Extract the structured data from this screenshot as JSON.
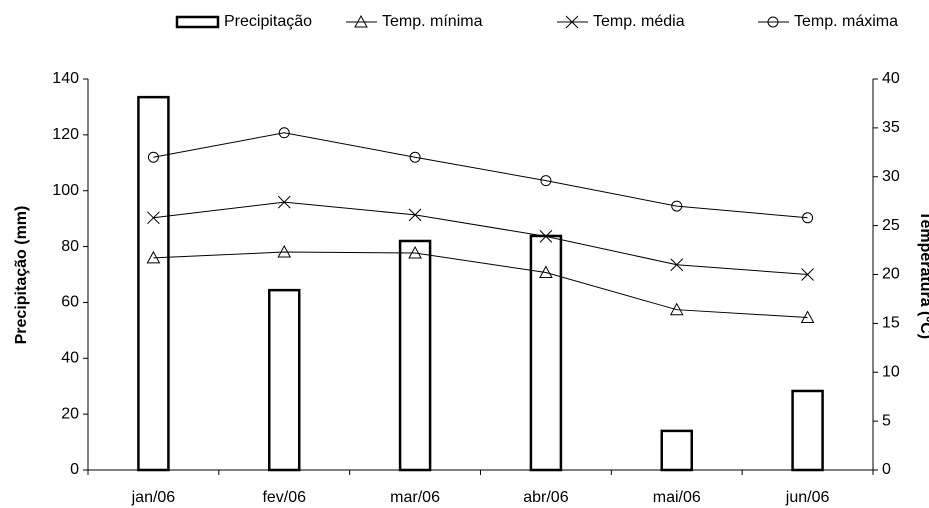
{
  "chart_data": {
    "type": "combo",
    "categories": [
      "jan/06",
      "fev/06",
      "mar/06",
      "abr/06",
      "mai/06",
      "jun/06"
    ],
    "ylabel": "Precipitação (mm)",
    "y2label": "Temperatura (ºC)",
    "ylim": [
      0,
      140
    ],
    "yticks": [
      0,
      20,
      40,
      60,
      80,
      100,
      120,
      140
    ],
    "y2lim": [
      0,
      40
    ],
    "y2ticks": [
      0,
      5,
      10,
      15,
      20,
      25,
      30,
      35,
      40
    ],
    "series": [
      {
        "name": "Precipitação",
        "type": "bar",
        "color": "#000000",
        "values": [
          133.5,
          64.4,
          82,
          83.8,
          14,
          28.3
        ]
      },
      {
        "name": "Temp. mínima",
        "type": "line",
        "marker": "triangle",
        "axis": "y2",
        "color": "#000000",
        "values": [
          21.7,
          22.3,
          22.2,
          20.2,
          16.4,
          15.6
        ]
      },
      {
        "name": "Temp. média",
        "type": "line",
        "marker": "x",
        "axis": "y2",
        "color": "#000000",
        "values": [
          25.8,
          27.4,
          26.1,
          23.9,
          21,
          20
        ]
      },
      {
        "name": "Temp. máxima",
        "type": "line",
        "marker": "circle",
        "axis": "y2",
        "color": "#000000",
        "values": [
          32,
          34.5,
          32,
          29.6,
          27,
          25.8
        ]
      }
    ]
  }
}
